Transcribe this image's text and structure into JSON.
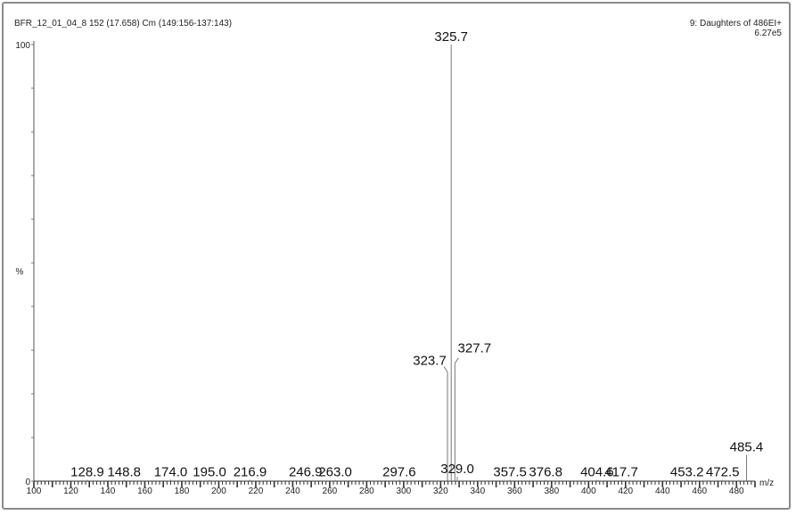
{
  "header": {
    "left": "BFR_12_01_04_8 152 (17.658) Cm (149:156-137:143)",
    "right_line1": "9: Daughters of 486EI+",
    "right_line2": "6.27e5"
  },
  "chart_data": {
    "type": "bar",
    "xlabel": "m/z",
    "ylabel": "%",
    "xlim": [
      100,
      490
    ],
    "ylim": [
      0,
      100
    ],
    "x_ticks": [
      100,
      120,
      140,
      160,
      180,
      200,
      220,
      240,
      260,
      280,
      300,
      320,
      340,
      360,
      380,
      400,
      420,
      440,
      460,
      480
    ],
    "y_ticks": [
      0,
      100
    ],
    "peaks": [
      {
        "mz": 128.9,
        "label": "128.9",
        "intensity": 0.3
      },
      {
        "mz": 148.8,
        "label": "148.8",
        "intensity": 0.3
      },
      {
        "mz": 174.0,
        "label": "174.0",
        "intensity": 0.3
      },
      {
        "mz": 195.0,
        "label": "195.0",
        "intensity": 0.3
      },
      {
        "mz": 216.9,
        "label": "216.9",
        "intensity": 0.3
      },
      {
        "mz": 246.9,
        "label": "246.9",
        "intensity": 0.3
      },
      {
        "mz": 263.0,
        "label": "263.0",
        "intensity": 0.3
      },
      {
        "mz": 297.6,
        "label": "297.6",
        "intensity": 0.3
      },
      {
        "mz": 323.7,
        "label": "323.7",
        "intensity": 25
      },
      {
        "mz": 325.7,
        "label": "325.7",
        "intensity": 100
      },
      {
        "mz": 327.7,
        "label": "327.7",
        "intensity": 27
      },
      {
        "mz": 329.0,
        "label": "329.0",
        "intensity": 1
      },
      {
        "mz": 357.5,
        "label": "357.5",
        "intensity": 0.3
      },
      {
        "mz": 376.8,
        "label": "376.8",
        "intensity": 0.3
      },
      {
        "mz": 404.6,
        "label": "404.6",
        "intensity": 0.3
      },
      {
        "mz": 417.7,
        "label": "417.7",
        "intensity": 0.3
      },
      {
        "mz": 453.2,
        "label": "453.2",
        "intensity": 0.3
      },
      {
        "mz": 472.5,
        "label": "472.5",
        "intensity": 0.3
      },
      {
        "mz": 485.4,
        "label": "485.4",
        "intensity": 6
      }
    ]
  }
}
